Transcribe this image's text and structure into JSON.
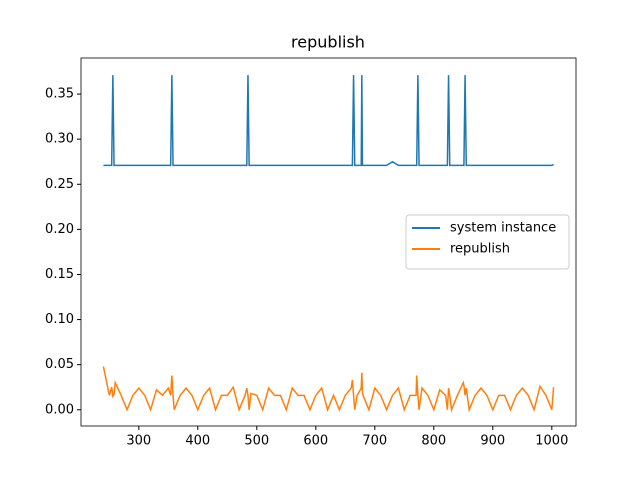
{
  "chart_data": {
    "type": "line",
    "title": "republish",
    "x": [
      240,
      250,
      254,
      256,
      258,
      260,
      270,
      280,
      290,
      300,
      310,
      320,
      330,
      340,
      350,
      354,
      356,
      358,
      360,
      370,
      380,
      390,
      400,
      410,
      420,
      430,
      440,
      450,
      460,
      470,
      480,
      483,
      485,
      487,
      490,
      500,
      510,
      520,
      530,
      540,
      550,
      560,
      570,
      580,
      590,
      600,
      610,
      620,
      630,
      640,
      650,
      660,
      662,
      664,
      666,
      670,
      677,
      678,
      679,
      680,
      690,
      700,
      710,
      720,
      730,
      740,
      750,
      760,
      770,
      771,
      773,
      775,
      780,
      790,
      800,
      810,
      820,
      823,
      825,
      827,
      830,
      840,
      850,
      851,
      853,
      855,
      860,
      870,
      880,
      890,
      900,
      910,
      920,
      930,
      940,
      950,
      960,
      970,
      980,
      990,
      1000,
      1003
    ],
    "series": [
      {
        "name": "system instance",
        "color": "#1f77b4",
        "values": [
          0.271,
          0.271,
          0.271,
          0.371,
          0.271,
          0.271,
          0.271,
          0.271,
          0.271,
          0.271,
          0.271,
          0.271,
          0.271,
          0.271,
          0.271,
          0.271,
          0.371,
          0.271,
          0.271,
          0.271,
          0.271,
          0.271,
          0.271,
          0.271,
          0.271,
          0.271,
          0.271,
          0.271,
          0.271,
          0.271,
          0.271,
          0.271,
          0.371,
          0.271,
          0.271,
          0.271,
          0.271,
          0.271,
          0.271,
          0.271,
          0.271,
          0.271,
          0.271,
          0.271,
          0.271,
          0.271,
          0.271,
          0.271,
          0.271,
          0.271,
          0.271,
          0.271,
          0.271,
          0.371,
          0.271,
          0.271,
          0.271,
          0.371,
          0.271,
          0.271,
          0.271,
          0.271,
          0.271,
          0.271,
          0.275,
          0.271,
          0.271,
          0.271,
          0.271,
          0.271,
          0.371,
          0.271,
          0.271,
          0.271,
          0.271,
          0.271,
          0.271,
          0.271,
          0.371,
          0.271,
          0.271,
          0.271,
          0.271,
          0.271,
          0.371,
          0.271,
          0.271,
          0.271,
          0.271,
          0.271,
          0.271,
          0.271,
          0.271,
          0.271,
          0.271,
          0.271,
          0.271,
          0.271,
          0.271,
          0.271,
          0.271,
          0.272
        ]
      },
      {
        "name": "republish",
        "color": "#ff7f0e",
        "values": [
          0.048,
          0.016,
          0.025,
          0.015,
          0.017,
          0.03,
          0.016,
          0.0,
          0.016,
          0.024,
          0.016,
          0.0,
          0.022,
          0.016,
          0.024,
          0.016,
          0.038,
          0.016,
          0.0,
          0.016,
          0.024,
          0.016,
          0.0,
          0.016,
          0.024,
          0.0,
          0.016,
          0.016,
          0.025,
          0.0,
          0.016,
          0.024,
          0.016,
          0.0,
          0.018,
          0.016,
          0.0,
          0.024,
          0.016,
          0.016,
          0.0,
          0.024,
          0.016,
          0.016,
          0.0,
          0.016,
          0.024,
          0.0,
          0.016,
          0.0,
          0.016,
          0.024,
          0.033,
          0.016,
          0.0,
          0.016,
          0.024,
          0.041,
          0.02,
          0.016,
          0.0,
          0.024,
          0.016,
          0.0,
          0.016,
          0.024,
          0.0,
          0.016,
          0.016,
          0.038,
          0.016,
          0.0,
          0.024,
          0.016,
          0.0,
          0.022,
          0.016,
          0.0,
          0.024,
          0.016,
          0.0,
          0.016,
          0.03,
          0.027,
          0.016,
          0.024,
          0.0,
          0.016,
          0.024,
          0.016,
          0.0,
          0.016,
          0.016,
          0.0,
          0.016,
          0.024,
          0.016,
          0.0,
          0.026,
          0.016,
          0.0,
          0.025
        ]
      }
    ],
    "xlim": [
      202,
      1041
    ],
    "xticks": [
      300,
      400,
      500,
      600,
      700,
      800,
      900,
      1000
    ],
    "ylim": [
      -0.018,
      0.39
    ],
    "yticks": [
      {
        "value": 0,
        "label": "0.00"
      },
      {
        "value": 0.05,
        "label": "0.05"
      },
      {
        "value": 0.1,
        "label": "0.10"
      },
      {
        "value": 0.15,
        "label": "0.15"
      },
      {
        "value": 0.2,
        "label": "0.20"
      },
      {
        "value": 0.25,
        "label": "0.25"
      },
      {
        "value": 0.3,
        "label": "0.30"
      },
      {
        "value": 0.35,
        "label": "0.35"
      }
    ],
    "grid": false,
    "legend": "center right"
  }
}
